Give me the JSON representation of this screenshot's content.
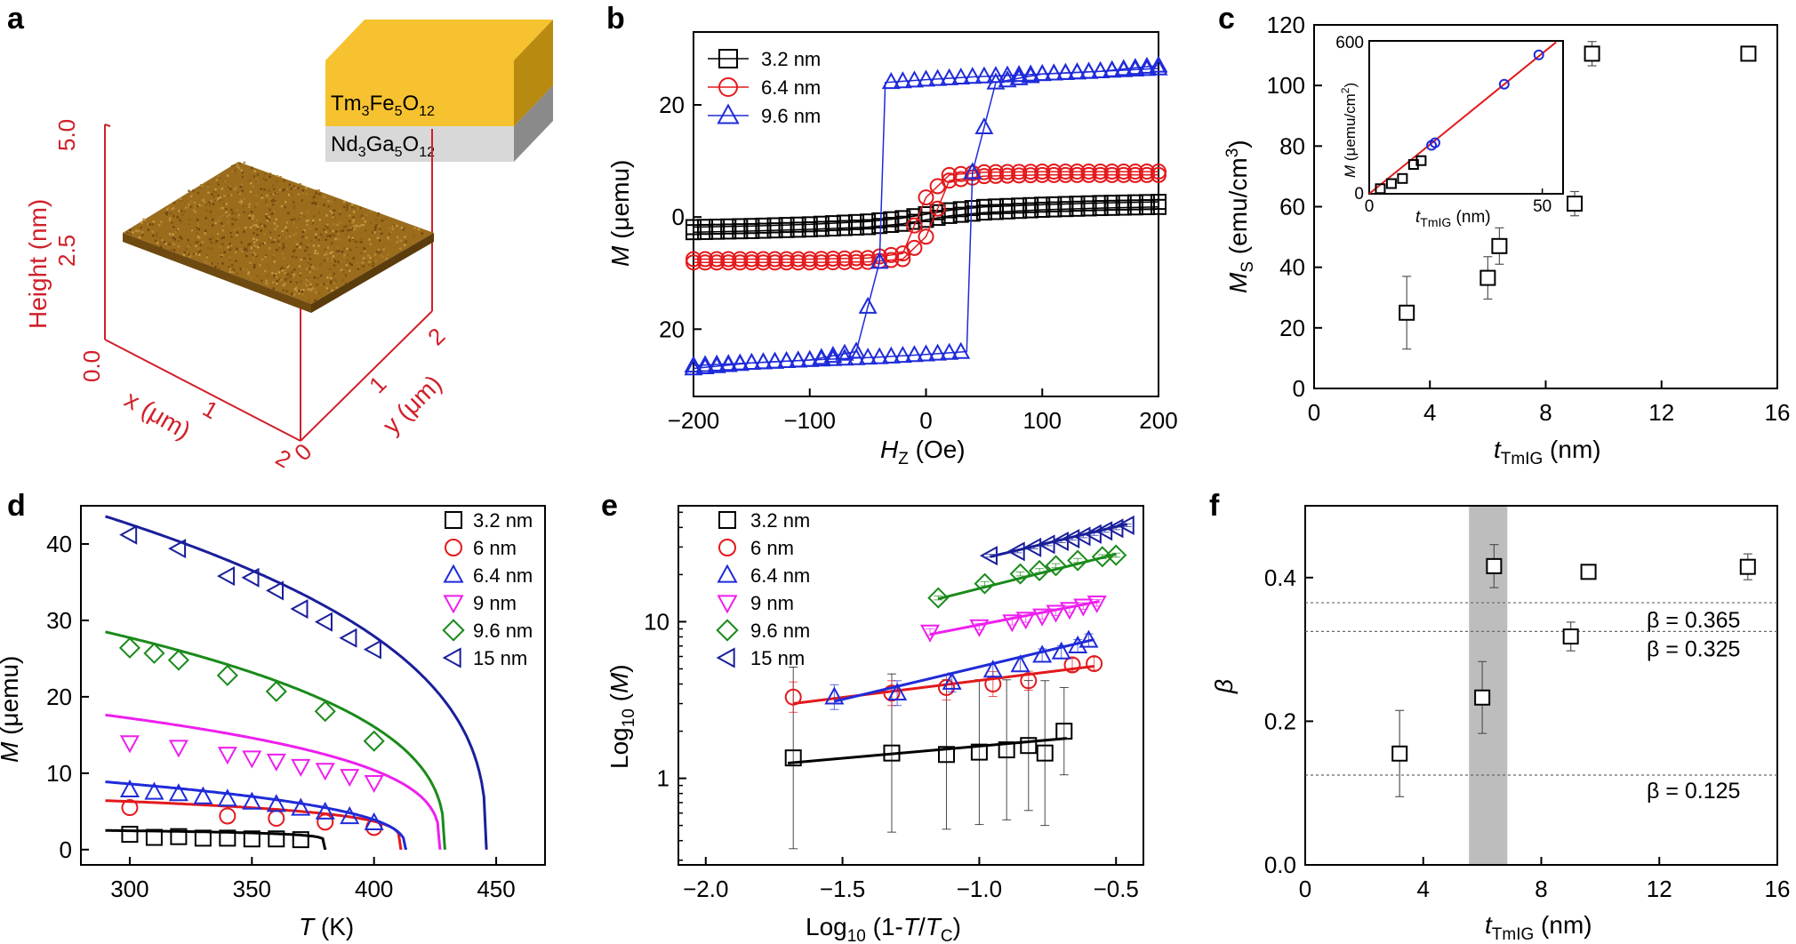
{
  "figure": {
    "panel_labels": [
      "a",
      "b",
      "c",
      "d",
      "e",
      "f"
    ]
  },
  "panel_a": {
    "layer_top": "Tm3Fe5O12",
    "layer_bottom": "Nd3Ga5O12",
    "z_label": "Height (nm)",
    "z_ticks": [
      "0.0",
      "2.5",
      "5.0"
    ],
    "x_label": "x (μm)",
    "x_ticks": [
      "2",
      "1"
    ],
    "y_label": "y (μm)",
    "y_ticks": [
      "0",
      "1",
      "2"
    ],
    "colors": {
      "axis": "#d0202a",
      "surface": "#9a6c1c",
      "top_layer": "#f6c230",
      "bottom_layer": "#cfcfcf"
    }
  },
  "chart_data": [
    {
      "panel": "b",
      "type": "scatter",
      "xlabel": "HZ (Oe)",
      "ylabel": "M (μemu)",
      "xlim": [
        -200,
        200
      ],
      "ylim": [
        -32,
        33
      ],
      "x_ticks": [
        "−200",
        "−100",
        "0",
        "100",
        "200"
      ],
      "y_ticks": [
        "20",
        "0",
        "20"
      ],
      "y_tick_values": [
        20,
        0,
        -20
      ],
      "series": [
        {
          "name": "3.2 nm",
          "marker": "square",
          "color": "#000000",
          "x": [
            -200,
            -150,
            -100,
            -50,
            -20,
            0,
            20,
            50,
            100,
            150,
            200
          ],
          "y": [
            -1.8,
            -1.6,
            -1.3,
            -0.8,
            -0.2,
            0.5,
            1.2,
            1.8,
            2.2,
            2.5,
            2.7
          ]
        },
        {
          "name": "6.4 nm",
          "marker": "circle",
          "color": "#e3191c",
          "x": [
            -200,
            -150,
            -100,
            -50,
            -20,
            0,
            20,
            50,
            100,
            150,
            200
          ],
          "y": [
            -7.5,
            -7.5,
            -7.5,
            -7.3,
            -6.5,
            3.5,
            7.5,
            8.0,
            8.1,
            8.1,
            8.1
          ]
        },
        {
          "name": "9.6 nm",
          "marker": "triangle-up",
          "color": "#1f2bd9",
          "x": [
            -200,
            -150,
            -100,
            -60,
            -40,
            -35,
            0,
            40,
            100,
            150,
            200
          ],
          "y": [
            -26.5,
            -26,
            -25.5,
            -24,
            -8,
            24,
            24.5,
            25,
            25.5,
            26,
            27
          ]
        }
      ]
    },
    {
      "panel": "c",
      "type": "scatter",
      "xlabel": "tTmIG (nm)",
      "ylabel": "MS (emu/cm3)",
      "xlim": [
        0,
        16
      ],
      "ylim": [
        0,
        120
      ],
      "x_ticks": [
        "0",
        "4",
        "8",
        "12",
        "16"
      ],
      "y_ticks": [
        "0",
        "20",
        "40",
        "60",
        "80",
        "100",
        "120"
      ],
      "series": [
        {
          "name": "MS",
          "marker": "square",
          "color": "#000000",
          "x": [
            3.2,
            6.0,
            6.4,
            9.0,
            9.6,
            15.0
          ],
          "y": [
            25,
            36.5,
            47,
            61,
            110.5,
            110.5
          ],
          "err": [
            12,
            7,
            6,
            4,
            4,
            1
          ]
        }
      ],
      "inset": {
        "xlabel": "tTmIG (nm)",
        "ylabel": "M (μemu/cm2)",
        "xlim": [
          0,
          56
        ],
        "ylim": [
          0,
          600
        ],
        "x_ticks": [
          "0",
          "50"
        ],
        "y_ticks": [
          "0",
          "600"
        ],
        "fit_line": {
          "color": "#e3191c",
          "x": [
            0,
            54
          ],
          "y": [
            0,
            595
          ]
        },
        "series": [
          {
            "name": "squares",
            "marker": "square",
            "color": "#000000",
            "x": [
              3.2,
              6.4,
              9.6,
              12.8,
              15
            ],
            "y": [
              20,
              40,
              60,
              115,
              130
            ]
          },
          {
            "name": "circles",
            "marker": "circle",
            "color": "#1f2bd9",
            "x": [
              18,
              19,
              39,
              49
            ],
            "y": [
              190,
              200,
              430,
              545
            ]
          }
        ]
      }
    },
    {
      "panel": "d",
      "type": "scatter",
      "xlabel": "T (K)",
      "ylabel": "M (μemu)",
      "xlim": [
        280,
        470
      ],
      "ylim": [
        -2,
        45
      ],
      "x_ticks": [
        "300",
        "350",
        "400",
        "450"
      ],
      "y_ticks": [
        "0",
        "10",
        "20",
        "30",
        "40"
      ],
      "series": [
        {
          "name": "3.2 nm",
          "marker": "square",
          "color": "#000000",
          "x": [
            300,
            310,
            320,
            330,
            340,
            350,
            360,
            370
          ],
          "y": [
            2.0,
            1.6,
            1.7,
            1.5,
            1.5,
            1.4,
            1.4,
            1.3
          ],
          "fit": {
            "A": 3.0,
            "Tc": 380,
            "beta": 0.125,
            "T0": 290
          }
        },
        {
          "name": "6 nm",
          "marker": "circle",
          "color": "#e3191c",
          "x": [
            300,
            340,
            360,
            380,
            400
          ],
          "y": [
            5.5,
            4.4,
            4.1,
            3.6,
            2.9
          ],
          "fit": {
            "A": 8.5,
            "Tc": 411,
            "beta": 0.23,
            "T0": 290
          }
        },
        {
          "name": "6.4 nm",
          "marker": "triangle-up",
          "color": "#1f2bd9",
          "x": [
            300,
            310,
            320,
            330,
            340,
            350,
            360,
            370,
            380,
            390,
            400
          ],
          "y": [
            7.8,
            7.5,
            7.3,
            6.9,
            6.6,
            6.2,
            5.9,
            5.4,
            4.9,
            4.3,
            3.5
          ],
          "fit": {
            "A": 13.8,
            "Tc": 413,
            "beta": 0.365,
            "T0": 290
          }
        },
        {
          "name": "9 nm",
          "marker": "triangle-down",
          "color": "#ee1fee",
          "x": [
            300,
            320,
            340,
            350,
            360,
            370,
            380,
            390,
            400
          ],
          "y": [
            14.0,
            13.4,
            12.5,
            12.0,
            11.6,
            10.9,
            10.4,
            9.6,
            8.8
          ],
          "fit": {
            "A": 25.5,
            "Tc": 427,
            "beta": 0.325,
            "T0": 290
          }
        },
        {
          "name": "9.6 nm",
          "marker": "diamond",
          "color": "#1a8a1a",
          "x": [
            300,
            310,
            320,
            340,
            360,
            380,
            400
          ],
          "y": [
            26.4,
            25.7,
            24.8,
            22.8,
            20.7,
            18.1,
            14.2
          ],
          "fit": {
            "A": 43.0,
            "Tc": 429,
            "beta": 0.365,
            "T0": 290
          }
        },
        {
          "name": "15 nm",
          "marker": "triangle-left",
          "color": "#1a1f9a",
          "x": [
            300,
            320,
            340,
            350,
            360,
            370,
            380,
            390,
            400
          ],
          "y": [
            41.2,
            39.4,
            35.8,
            35.6,
            33.9,
            31.5,
            29.8,
            27.7,
            26.2
          ],
          "fit": {
            "A": 64.0,
            "Tc": 446,
            "beta": 0.365,
            "T0": 290
          }
        }
      ]
    },
    {
      "panel": "e",
      "type": "scatter",
      "xlabel": "Log10 (1-T/TC)",
      "ylabel": "Log10 (M)",
      "xscale": "linear",
      "yscale": "log",
      "xlim": [
        -2.1,
        -0.4
      ],
      "ylim": [
        0.28,
        55
      ],
      "x_ticks": [
        "−2.0",
        "−1.5",
        "−1.0",
        "−0.5"
      ],
      "y_ticks": [
        "1",
        "10"
      ],
      "series": [
        {
          "name": "3.2 nm",
          "marker": "square",
          "color": "#000000",
          "x": [
            -1.68,
            -1.32,
            -1.12,
            -1.0,
            -0.9,
            -0.82,
            -0.76,
            -0.69
          ],
          "y": [
            1.35,
            1.45,
            1.42,
            1.47,
            1.52,
            1.62,
            1.45,
            2.0
          ],
          "err_factor": [
            3.8,
            3.2,
            3.0,
            2.9,
            2.8,
            2.6,
            2.9,
            1.9
          ],
          "fit": {
            "x": [
              -1.7,
              -0.68
            ],
            "y": [
              1.25,
              1.8
            ]
          }
        },
        {
          "name": "6 nm",
          "marker": "circle",
          "color": "#e3191c",
          "x": [
            -1.68,
            -1.32,
            -1.12,
            -0.95,
            -0.82,
            -0.66,
            -0.58
          ],
          "y": [
            3.3,
            3.5,
            3.8,
            4.0,
            4.2,
            5.3,
            5.4
          ],
          "err_factor": [
            1.25,
            1.2,
            1.2,
            1.2,
            1.15,
            1.1,
            1.1
          ],
          "fit": {
            "x": [
              -1.68,
              -0.58
            ],
            "y": [
              3.0,
              5.2
            ]
          }
        },
        {
          "name": "6.4 nm",
          "marker": "triangle-up",
          "color": "#1f2bd9",
          "x": [
            -1.53,
            -1.3,
            -1.1,
            -0.95,
            -0.85,
            -0.77,
            -0.7,
            -0.64,
            -0.6
          ],
          "y": [
            3.3,
            3.5,
            4.1,
            4.9,
            5.3,
            6.1,
            6.4,
            7.0,
            7.6
          ],
          "err_factor": [
            1.2,
            1.2,
            1.15,
            1.1,
            1.1,
            1.1,
            1.1,
            1.1,
            1.1
          ],
          "fit": {
            "x": [
              -1.53,
              -0.58
            ],
            "y": [
              3.1,
              7.7
            ]
          }
        },
        {
          "name": "9 nm",
          "marker": "triangle-down",
          "color": "#ee1fee",
          "x": [
            -1.18,
            -1.0,
            -0.88,
            -0.83,
            -0.77,
            -0.72,
            -0.67,
            -0.62,
            -0.57
          ],
          "y": [
            8.6,
            9.3,
            10.0,
            10.4,
            10.9,
            11.5,
            12.0,
            12.6,
            13.2
          ],
          "err_factor": [
            1.05,
            1.05,
            1.05,
            1.05,
            1.05,
            1.05,
            1.05,
            1.05,
            1.05
          ],
          "fit": {
            "x": [
              -1.18,
              -0.56
            ],
            "y": [
              8.3,
              13.5
            ]
          }
        },
        {
          "name": "9.6 nm",
          "marker": "diamond",
          "color": "#1a8a1a",
          "x": [
            -1.15,
            -0.98,
            -0.85,
            -0.78,
            -0.72,
            -0.64,
            -0.55,
            -0.5
          ],
          "y": [
            14.2,
            17.5,
            20.2,
            21.2,
            22.8,
            24.6,
            26.0,
            26.6
          ],
          "err_factor": [
            1.03,
            1.03,
            1.03,
            1.03,
            1.03,
            1.03,
            1.03,
            1.03
          ],
          "fit": {
            "x": [
              -1.15,
              -0.5
            ],
            "y": [
              14.0,
              27.0
            ]
          }
        },
        {
          "name": "15 nm",
          "marker": "triangle-left",
          "color": "#1a1f9a",
          "x": [
            -0.96,
            -0.86,
            -0.8,
            -0.75,
            -0.7,
            -0.66,
            -0.62,
            -0.58,
            -0.54,
            -0.5,
            -0.46
          ],
          "y": [
            26.4,
            28.1,
            29.8,
            31.2,
            32.6,
            33.9,
            35.1,
            36.3,
            38.0,
            39.5,
            41.3
          ],
          "err_factor": [
            1.02,
            1.02,
            1.02,
            1.02,
            1.02,
            1.02,
            1.02,
            1.02,
            1.02,
            1.02,
            1.02
          ],
          "fit": {
            "x": [
              -0.96,
              -0.46
            ],
            "y": [
              26.0,
              42.0
            ]
          }
        }
      ]
    },
    {
      "panel": "f",
      "type": "scatter",
      "xlabel": "tTmIG (nm)",
      "ylabel": "β",
      "xlim": [
        0,
        16
      ],
      "ylim": [
        0.0,
        0.5
      ],
      "x_ticks": [
        "0",
        "4",
        "8",
        "12",
        "16"
      ],
      "y_ticks": [
        "0.0",
        "0.2",
        "0.4"
      ],
      "series": [
        {
          "name": "β",
          "marker": "square",
          "color": "#000000",
          "x": [
            3.2,
            6.0,
            6.4,
            9.0,
            9.6,
            15.0
          ],
          "y": [
            0.155,
            0.233,
            0.416,
            0.318,
            0.408,
            0.415
          ],
          "err": [
            0.06,
            0.05,
            0.03,
            0.02,
            0.007,
            0.018
          ]
        }
      ],
      "reference_lines": [
        {
          "value": 0.365,
          "label": "β = 0.365"
        },
        {
          "value": 0.325,
          "label": "β = 0.325"
        },
        {
          "value": 0.125,
          "label": "β = 0.125"
        }
      ],
      "shaded_band": {
        "from": 5.55,
        "to": 6.85,
        "color": "#bdbdbd"
      }
    }
  ]
}
